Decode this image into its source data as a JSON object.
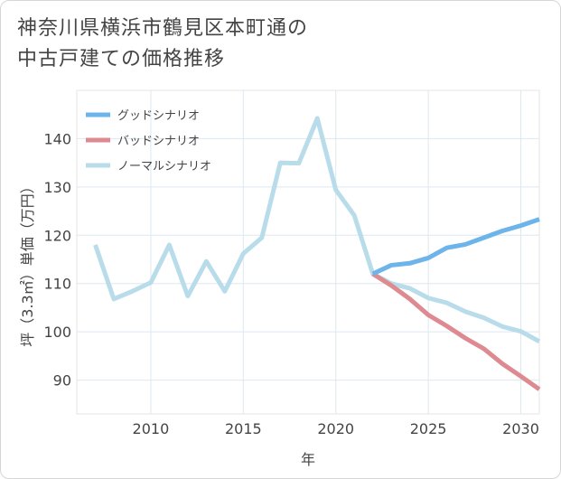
{
  "title": {
    "line1": "神奈川県横浜市鶴見区本町通の",
    "line2": "中古戸建ての価格推移"
  },
  "chart_data": {
    "type": "line",
    "title": "神奈川県横浜市鶴見区本町通の中古戸建ての価格推移",
    "xlabel": "年",
    "ylabel": "坪（3.3㎡）単価（万円）",
    "xlim": [
      2006,
      2031
    ],
    "ylim": [
      83,
      150
    ],
    "xticks": [
      2010,
      2015,
      2020,
      2025,
      2030
    ],
    "yticks": [
      90,
      100,
      110,
      120,
      130,
      140
    ],
    "grid": true,
    "legend_position": "top-left",
    "series": [
      {
        "name": "グッドシナリオ",
        "color": "#6cb4ea",
        "x": [
          2022,
          2023,
          2024,
          2025,
          2026,
          2027,
          2028,
          2029,
          2030,
          2031
        ],
        "y": [
          112,
          113.8,
          114.2,
          115.3,
          117.4,
          118.1,
          119.5,
          120.9,
          122.0,
          123.3
        ]
      },
      {
        "name": "バッドシナリオ",
        "color": "#dd8a91",
        "x": [
          2022,
          2023,
          2024,
          2025,
          2026,
          2027,
          2028,
          2029,
          2030,
          2031
        ],
        "y": [
          112,
          109.6,
          106.8,
          103.5,
          101.2,
          98.7,
          96.5,
          93.4,
          90.8,
          88.1
        ]
      },
      {
        "name": "ノーマルシナリオ",
        "color": "#b8dcea",
        "x": [
          2007,
          2008,
          2009,
          2010,
          2011,
          2012,
          2013,
          2014,
          2015,
          2016,
          2017,
          2018,
          2019,
          2020,
          2021,
          2022,
          2023,
          2024,
          2025,
          2026,
          2027,
          2028,
          2029,
          2030,
          2031
        ],
        "y": [
          118,
          106.8,
          108.4,
          110.2,
          118,
          107.4,
          114.6,
          108.4,
          116.2,
          119.5,
          135,
          134.9,
          144.2,
          129.4,
          124.1,
          112,
          110,
          109,
          107,
          106,
          104.2,
          102.9,
          101.1,
          100.1,
          98
        ]
      }
    ]
  }
}
